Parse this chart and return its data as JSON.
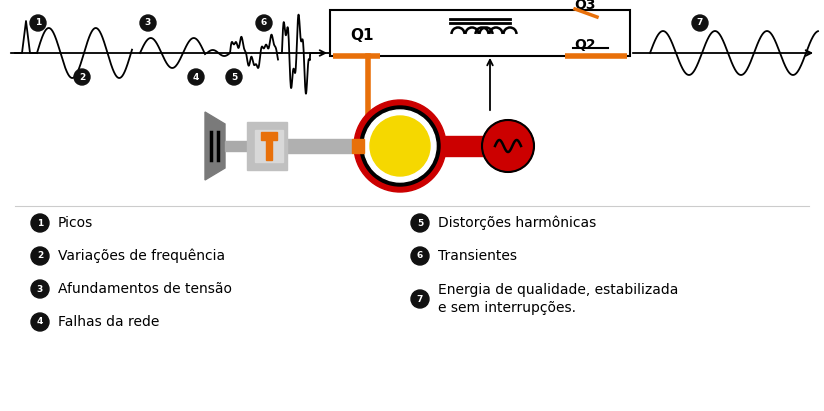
{
  "bg_color": "#ffffff",
  "orange_color": "#e8700a",
  "red_color": "#cc0000",
  "yellow_color": "#f5d800",
  "bullet_color": "#111111",
  "legend_col1": [
    [
      1,
      "Picos"
    ],
    [
      2,
      "Variações de frequência"
    ],
    [
      3,
      "Afundamentos de tensão"
    ],
    [
      4,
      "Falhas da rede"
    ]
  ],
  "legend_col2": [
    [
      5,
      "Distorções harmônicas"
    ],
    [
      6,
      "Transientes"
    ],
    [
      7,
      "Energia de qualidade, estabilizada\ne sem interrupções."
    ]
  ]
}
